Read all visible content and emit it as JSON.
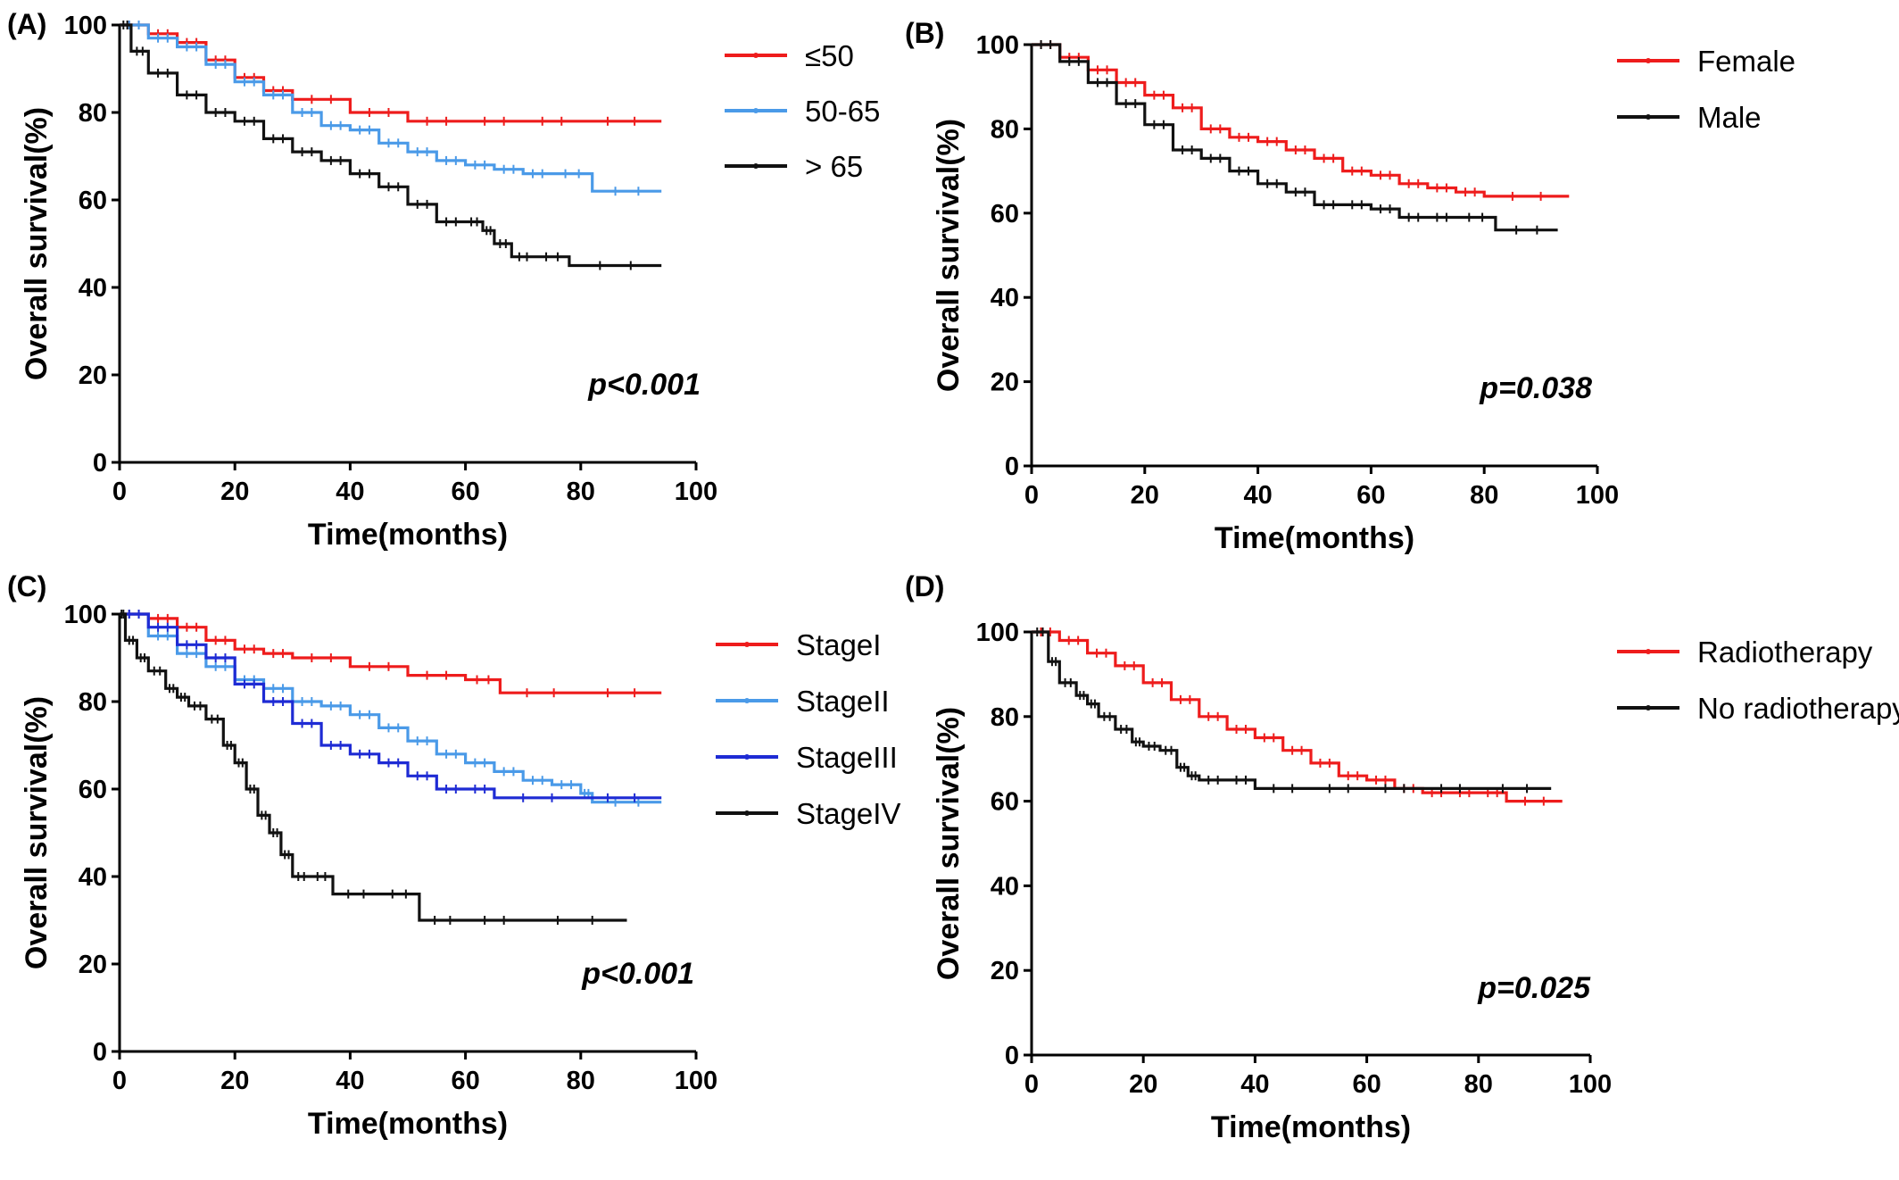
{
  "chart_data": [
    {
      "type": "line",
      "panel_label": "(A)",
      "xlabel": "Time(months)",
      "ylabel": "Overall survival(%)",
      "xlim": [
        0,
        100
      ],
      "ylim": [
        0,
        100
      ],
      "xticks": [
        "0",
        "20",
        "40",
        "60",
        "80",
        "100"
      ],
      "yticks": [
        "0",
        "20",
        "40",
        "60",
        "80",
        "100"
      ],
      "annotation": "p<0.001",
      "legend_position": "top-right",
      "series": [
        {
          "name": "≤50",
          "color": "#ee1c1c",
          "x": [
            0,
            5,
            10,
            15,
            20,
            25,
            30,
            40,
            50,
            60,
            70,
            80,
            94
          ],
          "y": [
            100,
            98,
            96,
            92,
            88,
            85,
            83,
            80,
            78,
            78,
            78,
            78,
            78
          ]
        },
        {
          "name": "50-65",
          "color": "#4a9ae8",
          "x": [
            0,
            5,
            10,
            15,
            20,
            25,
            30,
            35,
            40,
            45,
            50,
            55,
            60,
            65,
            70,
            75,
            82,
            94
          ],
          "y": [
            100,
            97,
            95,
            91,
            87,
            84,
            80,
            77,
            76,
            73,
            71,
            69,
            68,
            67,
            66,
            66,
            62,
            62
          ]
        },
        {
          "name": "> 65",
          "color": "#111111",
          "x": [
            0,
            2,
            5,
            10,
            15,
            20,
            25,
            30,
            35,
            40,
            45,
            50,
            55,
            60,
            63,
            65,
            68,
            72,
            78,
            94
          ],
          "y": [
            100,
            94,
            89,
            84,
            80,
            78,
            74,
            71,
            69,
            66,
            63,
            59,
            55,
            55,
            53,
            50,
            47,
            47,
            45,
            45
          ]
        }
      ]
    },
    {
      "type": "line",
      "panel_label": "(B)",
      "xlabel": "Time(months)",
      "ylabel": "Overall survival(%)",
      "xlim": [
        0,
        100
      ],
      "ylim": [
        0,
        100
      ],
      "xticks": [
        "0",
        "20",
        "40",
        "60",
        "80",
        "100"
      ],
      "yticks": [
        "0",
        "20",
        "40",
        "60",
        "80",
        "100"
      ],
      "annotation": "p=0.038",
      "legend_position": "top-right",
      "series": [
        {
          "name": "Female",
          "color": "#ee1c1c",
          "x": [
            0,
            5,
            10,
            15,
            20,
            25,
            30,
            35,
            40,
            45,
            50,
            55,
            60,
            65,
            70,
            75,
            80,
            95
          ],
          "y": [
            100,
            97,
            94,
            91,
            88,
            85,
            80,
            78,
            77,
            75,
            73,
            70,
            69,
            67,
            66,
            65,
            64,
            64
          ]
        },
        {
          "name": "Male",
          "color": "#111111",
          "x": [
            0,
            5,
            10,
            15,
            20,
            25,
            30,
            35,
            40,
            45,
            50,
            55,
            60,
            65,
            70,
            75,
            82,
            93
          ],
          "y": [
            100,
            96,
            91,
            86,
            81,
            75,
            73,
            70,
            67,
            65,
            62,
            62,
            61,
            59,
            59,
            59,
            56,
            56
          ]
        }
      ]
    },
    {
      "type": "line",
      "panel_label": "(C)",
      "xlabel": "Time(months)",
      "ylabel": "Overall survival(%)",
      "xlim": [
        0,
        100
      ],
      "ylim": [
        0,
        100
      ],
      "xticks": [
        "0",
        "20",
        "40",
        "60",
        "80",
        "100"
      ],
      "yticks": [
        "0",
        "20",
        "40",
        "60",
        "80",
        "100"
      ],
      "annotation": "p<0.001",
      "legend_position": "top-right",
      "series": [
        {
          "name": "StageI",
          "color": "#ee1c1c",
          "x": [
            0,
            5,
            10,
            15,
            20,
            25,
            30,
            40,
            50,
            60,
            66,
            80,
            94
          ],
          "y": [
            100,
            99,
            97,
            94,
            92,
            91,
            90,
            88,
            86,
            85,
            82,
            82,
            82
          ]
        },
        {
          "name": "StageII",
          "color": "#4a9ae8",
          "x": [
            0,
            5,
            10,
            15,
            20,
            25,
            30,
            35,
            40,
            45,
            50,
            55,
            60,
            65,
            70,
            75,
            80,
            82,
            94
          ],
          "y": [
            100,
            95,
            91,
            88,
            85,
            83,
            80,
            79,
            77,
            74,
            71,
            68,
            66,
            64,
            62,
            61,
            59,
            57,
            57
          ]
        },
        {
          "name": "StageIII",
          "color": "#1e2bd4",
          "x": [
            0,
            5,
            10,
            15,
            20,
            25,
            30,
            35,
            40,
            45,
            50,
            55,
            60,
            65,
            80,
            94
          ],
          "y": [
            100,
            97,
            93,
            90,
            84,
            80,
            75,
            70,
            68,
            66,
            63,
            60,
            60,
            58,
            58,
            58
          ]
        },
        {
          "name": "StageIV",
          "color": "#111111",
          "x": [
            0,
            1,
            3,
            5,
            8,
            10,
            12,
            15,
            18,
            20,
            22,
            24,
            26,
            28,
            30,
            33,
            37,
            45,
            52,
            60,
            70,
            88
          ],
          "y": [
            100,
            94,
            90,
            87,
            83,
            81,
            79,
            76,
            70,
            66,
            60,
            54,
            50,
            45,
            40,
            40,
            36,
            36,
            30,
            30,
            30,
            30
          ]
        }
      ]
    },
    {
      "type": "line",
      "panel_label": "(D)",
      "xlabel": "Time(months)",
      "ylabel": "Overall survival(%)",
      "xlim": [
        0,
        100
      ],
      "ylim": [
        0,
        100
      ],
      "xticks": [
        "0",
        "20",
        "40",
        "60",
        "80",
        "100"
      ],
      "yticks": [
        "0",
        "20",
        "40",
        "60",
        "80",
        "100"
      ],
      "annotation": "p=0.025",
      "legend_position": "top-right",
      "series": [
        {
          "name": "Radiotherapy",
          "color": "#ee1c1c",
          "x": [
            0,
            5,
            10,
            15,
            20,
            25,
            30,
            35,
            40,
            45,
            50,
            55,
            60,
            65,
            70,
            75,
            80,
            85,
            95
          ],
          "y": [
            100,
            98,
            95,
            92,
            88,
            84,
            80,
            77,
            75,
            72,
            69,
            66,
            65,
            63,
            62,
            62,
            62,
            60,
            60
          ]
        },
        {
          "name": "No radiotherapy",
          "color": "#111111",
          "x": [
            0,
            3,
            5,
            8,
            10,
            12,
            15,
            18,
            20,
            23,
            26,
            28,
            30,
            35,
            40,
            50,
            60,
            70,
            80,
            93
          ],
          "y": [
            100,
            93,
            88,
            85,
            83,
            80,
            77,
            74,
            73,
            72,
            68,
            66,
            65,
            65,
            63,
            63,
            63,
            63,
            63,
            63
          ]
        }
      ]
    }
  ]
}
